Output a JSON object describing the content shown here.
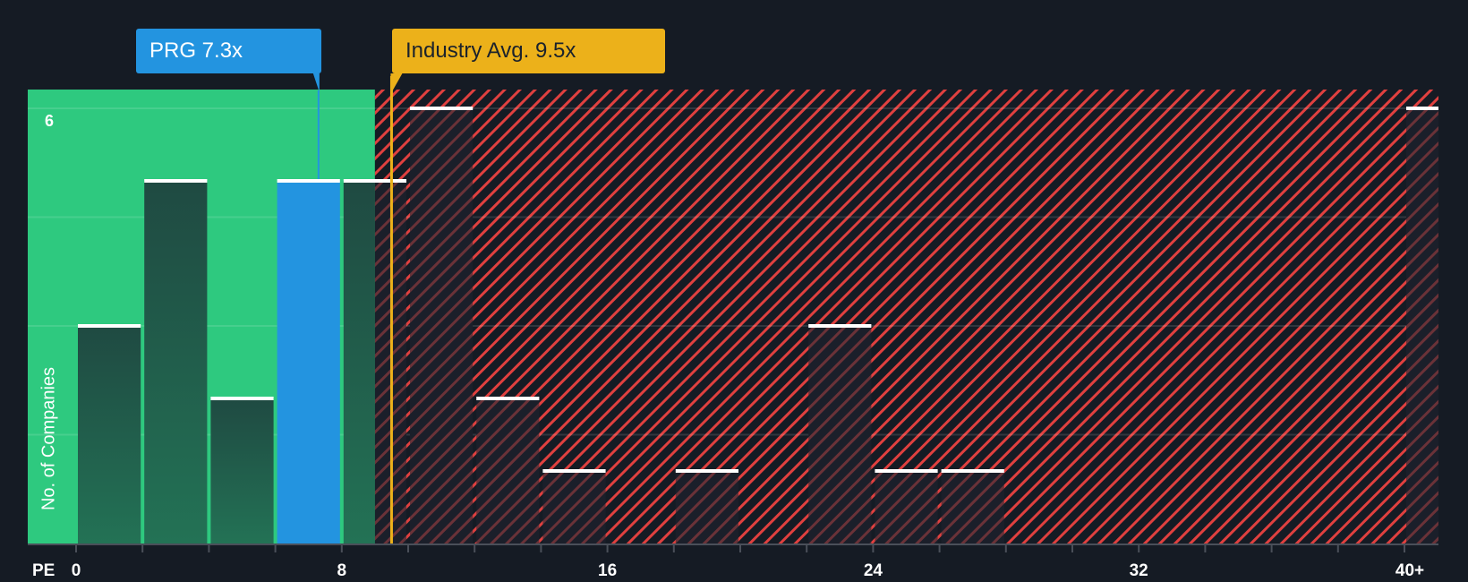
{
  "chart_data": {
    "type": "bar",
    "title": "",
    "xlabel": "PE",
    "ylabel": "No. of Companies",
    "x_ticks": [
      "0",
      "8",
      "16",
      "24",
      "32",
      "40+"
    ],
    "y_ticks_labeled": [
      "6"
    ],
    "ylim": [
      0,
      6
    ],
    "bin_width": 2,
    "categories": [
      "0-2",
      "2-4",
      "4-6",
      "6-8",
      "8-10",
      "10-12",
      "12-14",
      "14-16",
      "16-18",
      "18-20",
      "20-22",
      "22-24",
      "24-26",
      "26-28",
      "40+"
    ],
    "values": [
      3,
      5,
      2,
      5,
      5,
      6,
      2,
      1,
      0,
      1,
      0,
      3,
      1,
      1,
      6
    ],
    "highlight_bin": "6-8",
    "grid": true,
    "annotations": [
      {
        "label": "PRG 7.3x",
        "value": 7.3,
        "color": "#2394e0"
      },
      {
        "label": "Industry Avg. 9.5x",
        "value": 9.5,
        "color": "#ecb11a"
      }
    ],
    "regions": [
      {
        "name": "undervalued",
        "from": 0,
        "to": 9.0,
        "color": "#2ec97f"
      },
      {
        "name": "overvalued",
        "from": 9.0,
        "to": "40+",
        "color": "#e0403f",
        "pattern": "diagonal-hatch"
      }
    ]
  },
  "labels": {
    "prg": "PRG 7.3x",
    "industry": "Industry Avg. 9.5x",
    "ylabel": "No. of Companies",
    "pe": "PE",
    "ytick6": "6",
    "xticks": [
      "0",
      "8",
      "16",
      "24",
      "32",
      "40+"
    ]
  },
  "colors": {
    "background": "#151b24",
    "green_zone": "#2ec97f",
    "bar_in_green": "#22604a",
    "prg_bar": "#2394e0",
    "industry": "#ecb11a",
    "hatch": "#e0403f",
    "bar_cap": "#ffffff"
  }
}
